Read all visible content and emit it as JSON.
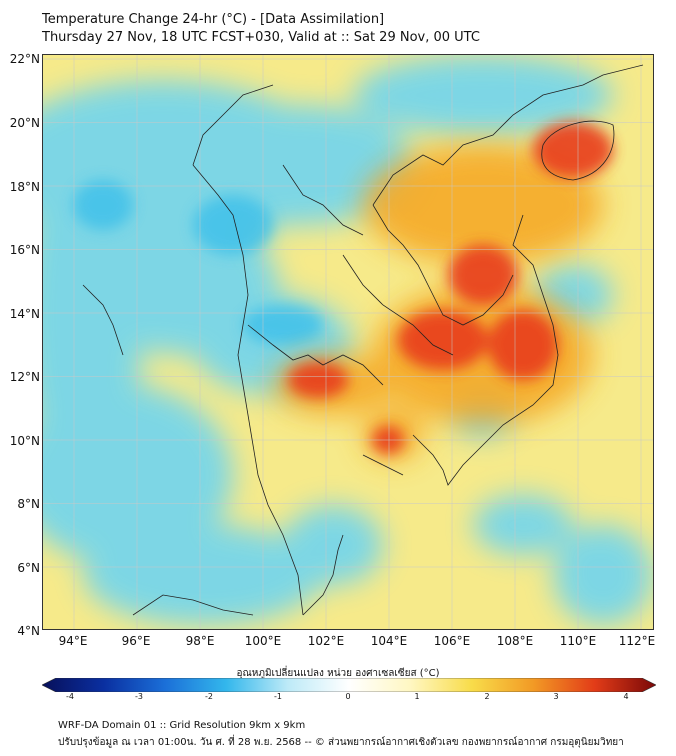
{
  "header": {
    "title_line1": "Temperature Change 24-hr (°C) - [Data Assimilation]",
    "title_line2": "Thursday 27 Nov, 18 UTC FCST+030, Valid at :: Sat 29 Nov, 00 UTC"
  },
  "map": {
    "lat_labels": [
      "22°N",
      "20°N",
      "18°N",
      "16°N",
      "14°N",
      "12°N",
      "10°N",
      "8°N",
      "6°N",
      "4°N"
    ],
    "lon_labels": [
      "94°E",
      "96°E",
      "98°E",
      "100°E",
      "102°E",
      "104°E",
      "106°E",
      "108°E",
      "110°E",
      "112°E"
    ],
    "base_color": "#f6ea8a",
    "warm_color": "#e83c1c",
    "cool_color": "#6fd4ef"
  },
  "colorbar": {
    "title": "อุณหภูมิเปลี่ยนแปลง หน่วย องศาเซลเซียส (°C)",
    "ticks": [
      "-4",
      "-3",
      "-2",
      "-1",
      "0",
      "1",
      "2",
      "3",
      "4"
    ],
    "stops": [
      "#08105a",
      "#0a2fa0",
      "#1b6fd8",
      "#33b7ec",
      "#bdeaf7",
      "#ffffff",
      "#fff7c2",
      "#f8dc4a",
      "#f29a25",
      "#e23c18",
      "#7a0808"
    ]
  },
  "footer": {
    "line1": "WRF-DA Domain 01 :: Grid Resolution 9km x 9km",
    "line2": "ปรับปรุงข้อมูล ณ เวลา 01:00น. วัน ศ. ที่ 28 พ.ย. 2568 -- © ส่วนพยากรณ์อากาศเชิงตัวเลข กองพยากรณ์อากาศ กรมอุตุนิยมวิทยา"
  }
}
